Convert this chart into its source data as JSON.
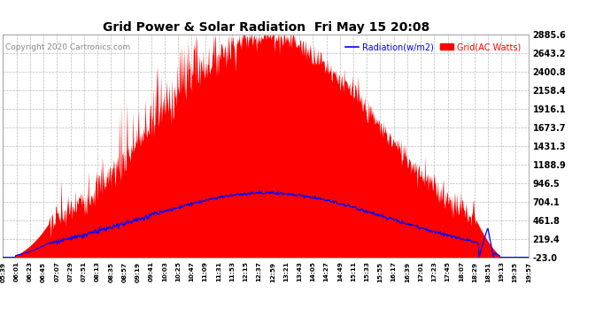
{
  "title": "Grid Power & Solar Radiation  Fri May 15 20:08",
  "copyright": "Copyright 2020 Cartronics.com",
  "legend_radiation": "Radiation(w/m2)",
  "legend_grid": "Grid(AC Watts)",
  "ylabel_right_ticks": [
    2885.6,
    2643.2,
    2400.8,
    2158.4,
    1916.1,
    1673.7,
    1431.3,
    1188.9,
    946.5,
    704.1,
    461.8,
    219.4,
    -23.0
  ],
  "ymin": -23.0,
  "ymax": 2885.6,
  "background_color": "#ffffff",
  "plot_bg_color": "#ffffff",
  "grid_color": "#aaaaaa",
  "bar_color": "#ff0000",
  "line_color": "#0000ff",
  "x_labels": [
    "05:39",
    "06:01",
    "06:23",
    "06:45",
    "07:07",
    "07:29",
    "07:51",
    "08:13",
    "08:35",
    "08:57",
    "09:19",
    "09:41",
    "10:03",
    "10:25",
    "10:47",
    "11:09",
    "11:31",
    "11:53",
    "12:15",
    "12:37",
    "12:59",
    "13:21",
    "13:43",
    "14:05",
    "14:27",
    "14:49",
    "15:11",
    "15:33",
    "15:55",
    "16:17",
    "16:39",
    "17:01",
    "17:23",
    "17:45",
    "18:07",
    "18:29",
    "18:51",
    "19:13",
    "19:35",
    "19:57"
  ]
}
